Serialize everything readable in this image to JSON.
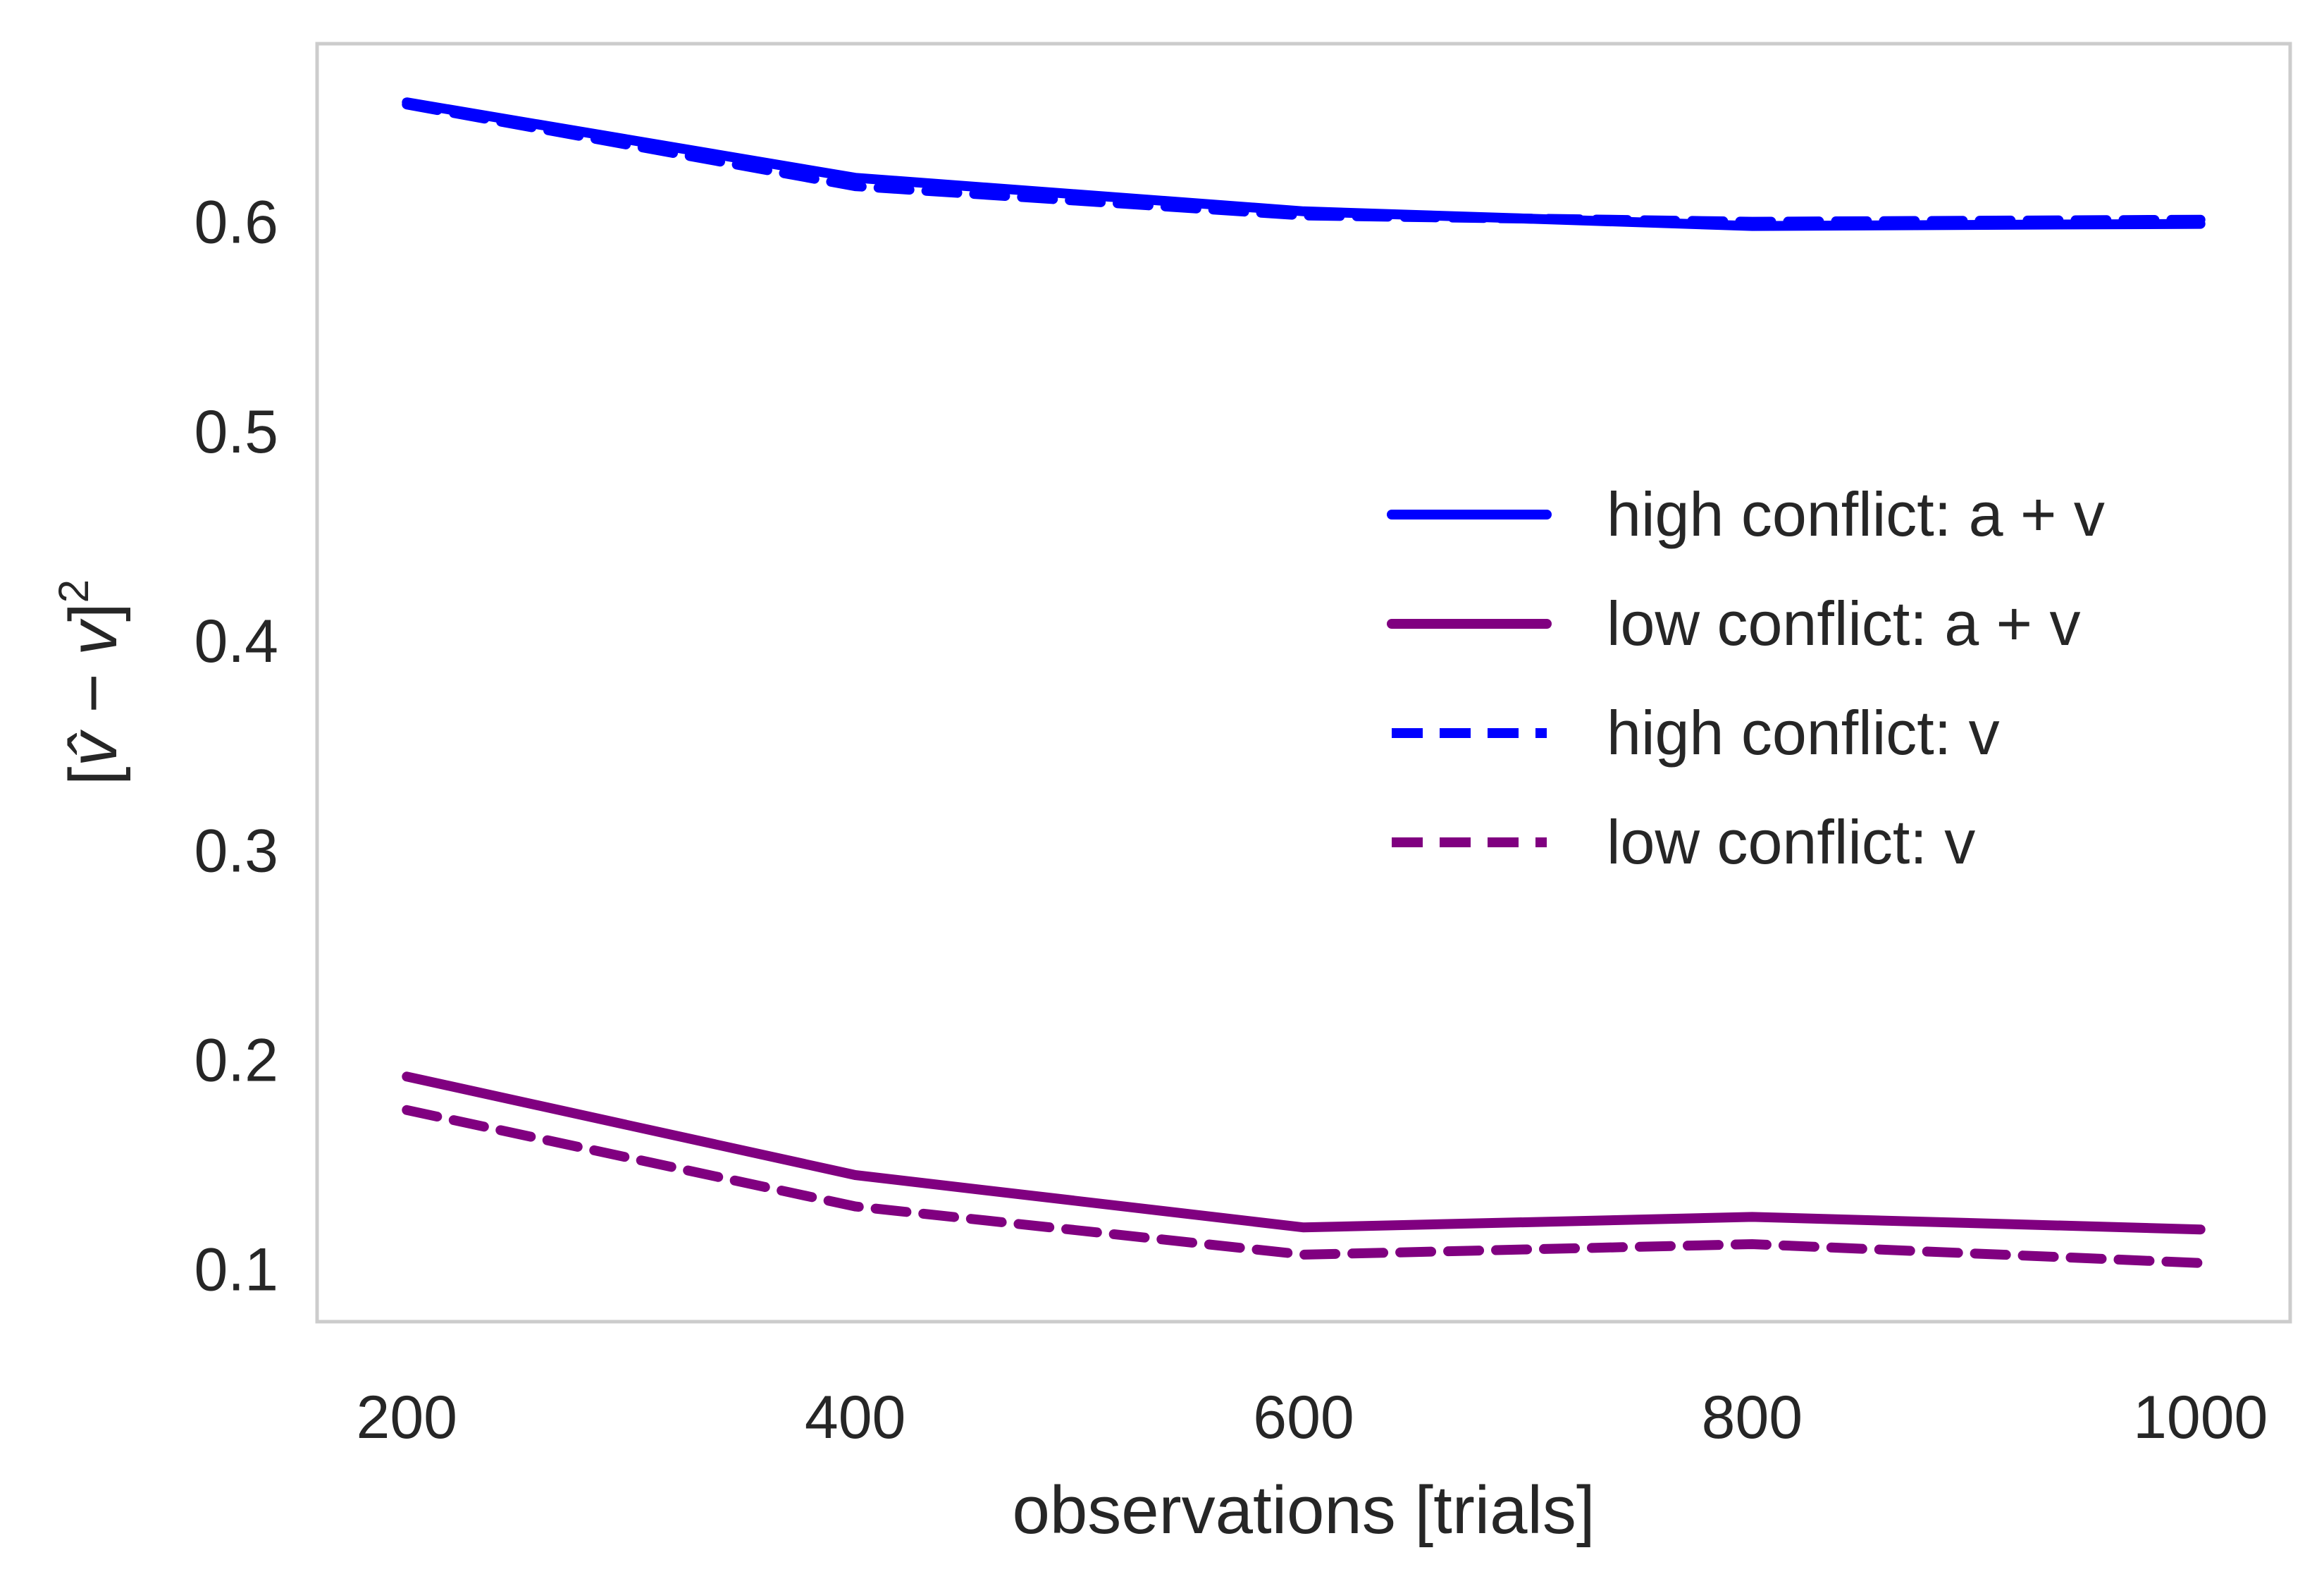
{
  "chart_data": {
    "type": "line",
    "xlabel": "observations [trials]",
    "ylabel": {
      "prefix": "[",
      "main": "v̂ − v",
      "suffix": "]",
      "superscript": "2"
    },
    "x": [
      200,
      400,
      600,
      800,
      1000
    ],
    "xticks": [
      "200",
      "400",
      "600",
      "800",
      "1000"
    ],
    "yticks": [
      "0.1",
      "0.2",
      "0.3",
      "0.4",
      "0.5",
      "0.6"
    ],
    "xlim": [
      160,
      1040
    ],
    "ylim": [
      0.075,
      0.685
    ],
    "grid": false,
    "legend_position": "center-right",
    "series": [
      {
        "name": "high conflict: a + v",
        "color": "#0000ff",
        "dash": "solid",
        "values": [
          0.657,
          0.621,
          0.605,
          0.598,
          0.599
        ]
      },
      {
        "name": "low conflict: a + v",
        "color": "#800080",
        "dash": "solid",
        "values": [
          0.192,
          0.145,
          0.12,
          0.125,
          0.119
        ]
      },
      {
        "name": "high conflict: v",
        "color": "#0000ff",
        "dash": "dashed",
        "values": [
          0.656,
          0.617,
          0.603,
          0.6,
          0.601
        ]
      },
      {
        "name": "low conflict: v",
        "color": "#800080",
        "dash": "dashed",
        "values": [
          0.176,
          0.13,
          0.107,
          0.112,
          0.103
        ]
      }
    ]
  }
}
